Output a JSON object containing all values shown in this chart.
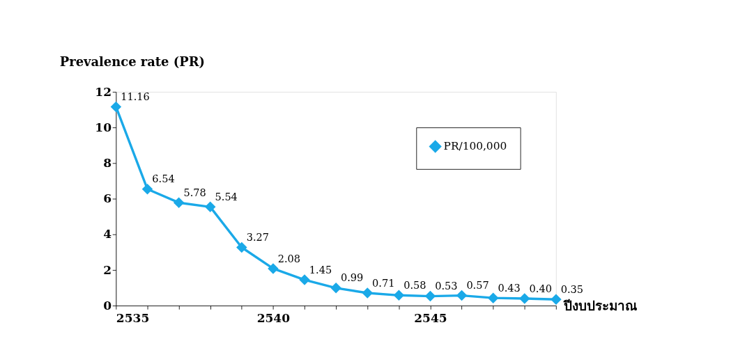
{
  "chart_data": {
    "type": "line",
    "xlabel": "ปีงบประมาณ",
    "ylabel": "Prevalence rate (PR)",
    "x": [
      2535,
      2536,
      2537,
      2538,
      2539,
      2540,
      2541,
      2542,
      2543,
      2544,
      2545,
      2546,
      2547,
      2548,
      2549
    ],
    "series": [
      {
        "name": "PR/100,000",
        "color": "#1aa9e8",
        "values": [
          11.16,
          6.54,
          5.78,
          5.54,
          3.27,
          2.08,
          1.45,
          0.99,
          0.71,
          0.58,
          0.53,
          0.57,
          0.43,
          0.4,
          0.35
        ],
        "value_labels": [
          "11.16",
          "6.54",
          "5.78",
          "5.54",
          "3.27",
          "2.08",
          "1.45",
          "0.99",
          "0.71",
          "0.58",
          "0.53",
          "0.57",
          "0.43",
          "0.40",
          "0.35"
        ]
      }
    ],
    "xlim": [
      2535,
      2549
    ],
    "xticks": [
      2535,
      {
        "value": 2536,
        "label": null
      },
      {
        "value": 2537,
        "label": null
      },
      {
        "value": 2538,
        "label": null
      },
      {
        "value": 2539,
        "label": null
      },
      2540,
      {
        "value": 2541,
        "label": null
      },
      {
        "value": 2542,
        "label": null
      },
      {
        "value": 2543,
        "label": null
      },
      {
        "value": 2544,
        "label": null
      },
      2545,
      {
        "value": 2546,
        "label": null
      },
      {
        "value": 2547,
        "label": null
      },
      {
        "value": 2548,
        "label": null
      },
      {
        "value": 2549,
        "label": null
      }
    ],
    "ylim": [
      0,
      12
    ],
    "yticks": [
      0,
      2,
      4,
      6,
      8,
      10,
      12
    ],
    "marker": "diamond",
    "line_style": "solid",
    "grid": false,
    "legend": "top right"
  }
}
